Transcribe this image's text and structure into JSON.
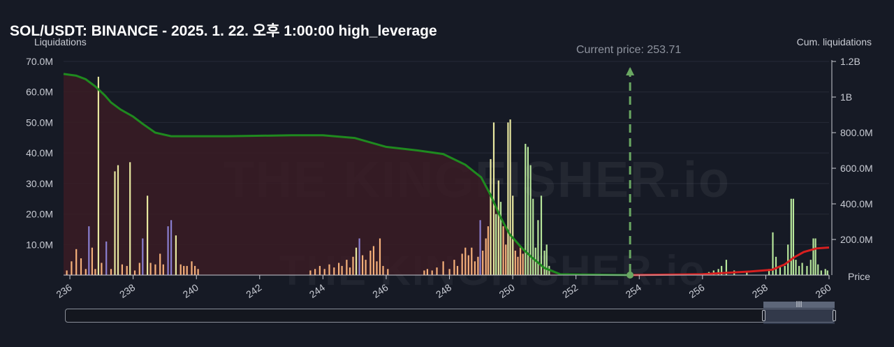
{
  "title": "SOL/USDT: BINANCE - 2025. 1. 22. 오후 1:00:00 high_leverage",
  "left_axis_title": "Liquidations",
  "right_axis_title": "Cum. liquidations",
  "price_axis_title": "Price",
  "current_price_label": "Current price: 253.71",
  "watermark": "THE KINGFISHER.io",
  "colors": {
    "background": "#161a25",
    "cum_short_line": "#1f8a1f",
    "cum_short_area": "#3a1c25",
    "cum_long_line": "#d81f1f",
    "current_price": "#6aa862",
    "bar_orange": "#f5b07a",
    "bar_yellow": "#e8e8a0",
    "bar_purple": "#8a7fd0",
    "bar_green": "#b6e59a"
  },
  "chart_data": {
    "type": "bar",
    "x_range": [
      235.8,
      260
    ],
    "x_ticks": [
      "236",
      "238",
      "240",
      "242",
      "244",
      "246",
      "248",
      "250",
      "252",
      "254",
      "256",
      "258",
      "260"
    ],
    "left_axis": {
      "range": [
        0,
        70000000
      ],
      "ticks": [
        "70.0M",
        "60.0M",
        "50.0M",
        "40.0M",
        "30.0M",
        "20.0M",
        "10.0M"
      ]
    },
    "right_axis": {
      "range": [
        0,
        1200000000
      ],
      "ticks": [
        "1.2B",
        "1B",
        "800.0M",
        "600.0M",
        "400.0M",
        "200.0M"
      ]
    },
    "current_price": 253.71,
    "cumulative_short_side": {
      "points": [
        [
          235.8,
          1130000000.0
        ],
        [
          236.2,
          1120000000.0
        ],
        [
          236.5,
          1100000000.0
        ],
        [
          236.8,
          1060000000.0
        ],
        [
          237.1,
          1010000000.0
        ],
        [
          237.3,
          970000000.0
        ],
        [
          237.6,
          930000000.0
        ],
        [
          238.0,
          890000000.0
        ],
        [
          238.3,
          850000000.0
        ],
        [
          238.7,
          800000000.0
        ],
        [
          239.2,
          780000000.0
        ],
        [
          241.0,
          780000000.0
        ],
        [
          243.0,
          785000000.0
        ],
        [
          244.0,
          785000000.0
        ],
        [
          245.0,
          770000000.0
        ],
        [
          246.0,
          720000000.0
        ],
        [
          247.0,
          700000000.0
        ],
        [
          247.8,
          680000000.0
        ],
        [
          248.5,
          620000000.0
        ],
        [
          249.0,
          550000000.0
        ],
        [
          249.3,
          450000000.0
        ],
        [
          249.6,
          330000000.0
        ],
        [
          249.9,
          230000000.0
        ],
        [
          250.3,
          150000000.0
        ],
        [
          250.6,
          100000000.0
        ],
        [
          251.0,
          40000000.0
        ],
        [
          251.5,
          5000000.0
        ],
        [
          253.71,
          0.0
        ]
      ]
    },
    "cumulative_long_side": {
      "points": [
        [
          253.71,
          0.0
        ],
        [
          256.0,
          5000000.0
        ],
        [
          257.5,
          20000000.0
        ],
        [
          258.2,
          30000000.0
        ],
        [
          258.6,
          60000000.0
        ],
        [
          258.9,
          100000000.0
        ],
        [
          259.2,
          130000000.0
        ],
        [
          259.6,
          150000000.0
        ],
        [
          260.0,
          155000000.0
        ]
      ]
    },
    "bars": [
      {
        "x": 235.9,
        "v": 1500000,
        "c": "orange"
      },
      {
        "x": 236.05,
        "v": 4500000,
        "c": "orange"
      },
      {
        "x": 236.2,
        "v": 8500000,
        "c": "orange"
      },
      {
        "x": 236.35,
        "v": 5500000,
        "c": "orange"
      },
      {
        "x": 236.5,
        "v": 2000000,
        "c": "orange"
      },
      {
        "x": 236.6,
        "v": 16000000,
        "c": "purple"
      },
      {
        "x": 236.7,
        "v": 9000000,
        "c": "orange"
      },
      {
        "x": 236.8,
        "v": 2000000,
        "c": "orange"
      },
      {
        "x": 236.9,
        "v": 65000000,
        "c": "yellow"
      },
      {
        "x": 237.0,
        "v": 4000000,
        "c": "orange"
      },
      {
        "x": 237.15,
        "v": 11000000,
        "c": "purple"
      },
      {
        "x": 237.3,
        "v": 2000000,
        "c": "orange"
      },
      {
        "x": 237.42,
        "v": 34000000,
        "c": "yellow"
      },
      {
        "x": 237.52,
        "v": 36000000,
        "c": "yellow"
      },
      {
        "x": 237.65,
        "v": 3500000,
        "c": "orange"
      },
      {
        "x": 237.8,
        "v": 3000000,
        "c": "orange"
      },
      {
        "x": 237.9,
        "v": 37000000,
        "c": "yellow"
      },
      {
        "x": 238.05,
        "v": 1500000,
        "c": "orange"
      },
      {
        "x": 238.2,
        "v": 4000000,
        "c": "orange"
      },
      {
        "x": 238.3,
        "v": 12000000,
        "c": "purple"
      },
      {
        "x": 238.45,
        "v": 26000000,
        "c": "yellow"
      },
      {
        "x": 238.55,
        "v": 4000000,
        "c": "orange"
      },
      {
        "x": 238.7,
        "v": 3500000,
        "c": "orange"
      },
      {
        "x": 238.85,
        "v": 7000000,
        "c": "orange"
      },
      {
        "x": 238.95,
        "v": 3500000,
        "c": "orange"
      },
      {
        "x": 239.1,
        "v": 16000000,
        "c": "purple"
      },
      {
        "x": 239.2,
        "v": 18000000,
        "c": "purple"
      },
      {
        "x": 239.35,
        "v": 13000000,
        "c": "yellow"
      },
      {
        "x": 239.5,
        "v": 3500000,
        "c": "orange"
      },
      {
        "x": 239.6,
        "v": 3000000,
        "c": "orange"
      },
      {
        "x": 239.7,
        "v": 3000000,
        "c": "orange"
      },
      {
        "x": 239.85,
        "v": 4500000,
        "c": "orange"
      },
      {
        "x": 239.95,
        "v": 3000000,
        "c": "orange"
      },
      {
        "x": 240.05,
        "v": 2000000,
        "c": "orange"
      },
      {
        "x": 243.6,
        "v": 1500000,
        "c": "orange"
      },
      {
        "x": 243.75,
        "v": 2000000,
        "c": "orange"
      },
      {
        "x": 243.9,
        "v": 3000000,
        "c": "orange"
      },
      {
        "x": 244.05,
        "v": 2000000,
        "c": "orange"
      },
      {
        "x": 244.2,
        "v": 3500000,
        "c": "orange"
      },
      {
        "x": 244.35,
        "v": 2500000,
        "c": "orange"
      },
      {
        "x": 244.5,
        "v": 4000000,
        "c": "orange"
      },
      {
        "x": 244.6,
        "v": 3000000,
        "c": "orange"
      },
      {
        "x": 244.75,
        "v": 5000000,
        "c": "orange"
      },
      {
        "x": 244.85,
        "v": 2500000,
        "c": "orange"
      },
      {
        "x": 244.95,
        "v": 6000000,
        "c": "orange"
      },
      {
        "x": 245.05,
        "v": 9000000,
        "c": "yellow"
      },
      {
        "x": 245.15,
        "v": 12000000,
        "c": "purple"
      },
      {
        "x": 245.25,
        "v": 6500000,
        "c": "orange"
      },
      {
        "x": 245.35,
        "v": 5000000,
        "c": "orange"
      },
      {
        "x": 245.5,
        "v": 8000000,
        "c": "orange"
      },
      {
        "x": 245.6,
        "v": 9500000,
        "c": "orange"
      },
      {
        "x": 245.7,
        "v": 4500000,
        "c": "orange"
      },
      {
        "x": 245.8,
        "v": 12000000,
        "c": "orange"
      },
      {
        "x": 245.9,
        "v": 3000000,
        "c": "orange"
      },
      {
        "x": 246.05,
        "v": 2000000,
        "c": "orange"
      },
      {
        "x": 247.2,
        "v": 1500000,
        "c": "orange"
      },
      {
        "x": 247.3,
        "v": 2000000,
        "c": "orange"
      },
      {
        "x": 247.45,
        "v": 1500000,
        "c": "orange"
      },
      {
        "x": 247.6,
        "v": 2500000,
        "c": "orange"
      },
      {
        "x": 247.8,
        "v": 4500000,
        "c": "orange"
      },
      {
        "x": 248.0,
        "v": 2000000,
        "c": "orange"
      },
      {
        "x": 248.15,
        "v": 5000000,
        "c": "orange"
      },
      {
        "x": 248.25,
        "v": 3000000,
        "c": "orange"
      },
      {
        "x": 248.4,
        "v": 7000000,
        "c": "orange"
      },
      {
        "x": 248.5,
        "v": 9000000,
        "c": "orange"
      },
      {
        "x": 248.6,
        "v": 6500000,
        "c": "orange"
      },
      {
        "x": 248.7,
        "v": 9000000,
        "c": "orange"
      },
      {
        "x": 248.8,
        "v": 4500000,
        "c": "orange"
      },
      {
        "x": 248.9,
        "v": 6000000,
        "c": "orange"
      },
      {
        "x": 248.97,
        "v": 18000000,
        "c": "purple"
      },
      {
        "x": 249.05,
        "v": 8000000,
        "c": "orange"
      },
      {
        "x": 249.15,
        "v": 12000000,
        "c": "orange"
      },
      {
        "x": 249.22,
        "v": 16000000,
        "c": "orange"
      },
      {
        "x": 249.3,
        "v": 38000000,
        "c": "yellow"
      },
      {
        "x": 249.4,
        "v": 50000000,
        "c": "yellow"
      },
      {
        "x": 249.47,
        "v": 20000000,
        "c": "green"
      },
      {
        "x": 249.55,
        "v": 31000000,
        "c": "yellow"
      },
      {
        "x": 249.62,
        "v": 24000000,
        "c": "green"
      },
      {
        "x": 249.7,
        "v": 16000000,
        "c": "orange"
      },
      {
        "x": 249.78,
        "v": 10000000,
        "c": "orange"
      },
      {
        "x": 249.85,
        "v": 50000000,
        "c": "yellow"
      },
      {
        "x": 249.92,
        "v": 51000000,
        "c": "yellow"
      },
      {
        "x": 250.0,
        "v": 26000000,
        "c": "yellow"
      },
      {
        "x": 250.08,
        "v": 8000000,
        "c": "orange"
      },
      {
        "x": 250.16,
        "v": 6000000,
        "c": "orange"
      },
      {
        "x": 250.24,
        "v": 9000000,
        "c": "orange"
      },
      {
        "x": 250.32,
        "v": 7000000,
        "c": "orange"
      },
      {
        "x": 250.4,
        "v": 43000000,
        "c": "green"
      },
      {
        "x": 250.48,
        "v": 42000000,
        "c": "green"
      },
      {
        "x": 250.56,
        "v": 36000000,
        "c": "green"
      },
      {
        "x": 250.64,
        "v": 25000000,
        "c": "green"
      },
      {
        "x": 250.72,
        "v": 9000000,
        "c": "green"
      },
      {
        "x": 250.8,
        "v": 18000000,
        "c": "green"
      },
      {
        "x": 250.9,
        "v": 26000000,
        "c": "green"
      },
      {
        "x": 251.0,
        "v": 8000000,
        "c": "green"
      },
      {
        "x": 251.07,
        "v": 10000000,
        "c": "green"
      },
      {
        "x": 251.15,
        "v": 3000000,
        "c": "green"
      },
      {
        "x": 256.2,
        "v": 1000000,
        "c": "green"
      },
      {
        "x": 256.35,
        "v": 1500000,
        "c": "green"
      },
      {
        "x": 256.5,
        "v": 2000000,
        "c": "green"
      },
      {
        "x": 256.6,
        "v": 3000000,
        "c": "green"
      },
      {
        "x": 256.75,
        "v": 5000000,
        "c": "green"
      },
      {
        "x": 257.0,
        "v": 1500000,
        "c": "green"
      },
      {
        "x": 257.4,
        "v": 1000000,
        "c": "green"
      },
      {
        "x": 258.1,
        "v": 2000000,
        "c": "green"
      },
      {
        "x": 258.22,
        "v": 14000000,
        "c": "green"
      },
      {
        "x": 258.32,
        "v": 6000000,
        "c": "green"
      },
      {
        "x": 258.45,
        "v": 3000000,
        "c": "green"
      },
      {
        "x": 258.6,
        "v": 3000000,
        "c": "green"
      },
      {
        "x": 258.7,
        "v": 10000000,
        "c": "green"
      },
      {
        "x": 258.8,
        "v": 25000000,
        "c": "green"
      },
      {
        "x": 258.87,
        "v": 25000000,
        "c": "green"
      },
      {
        "x": 258.95,
        "v": 5000000,
        "c": "green"
      },
      {
        "x": 259.05,
        "v": 3000000,
        "c": "green"
      },
      {
        "x": 259.15,
        "v": 4000000,
        "c": "green"
      },
      {
        "x": 259.3,
        "v": 3000000,
        "c": "green"
      },
      {
        "x": 259.42,
        "v": 5000000,
        "c": "green"
      },
      {
        "x": 259.5,
        "v": 12000000,
        "c": "green"
      },
      {
        "x": 259.57,
        "v": 12000000,
        "c": "green"
      },
      {
        "x": 259.65,
        "v": 3500000,
        "c": "green"
      },
      {
        "x": 259.75,
        "v": 1500000,
        "c": "green"
      },
      {
        "x": 259.88,
        "v": 2000000,
        "c": "green"
      },
      {
        "x": 259.95,
        "v": 1500000,
        "c": "green"
      }
    ]
  }
}
